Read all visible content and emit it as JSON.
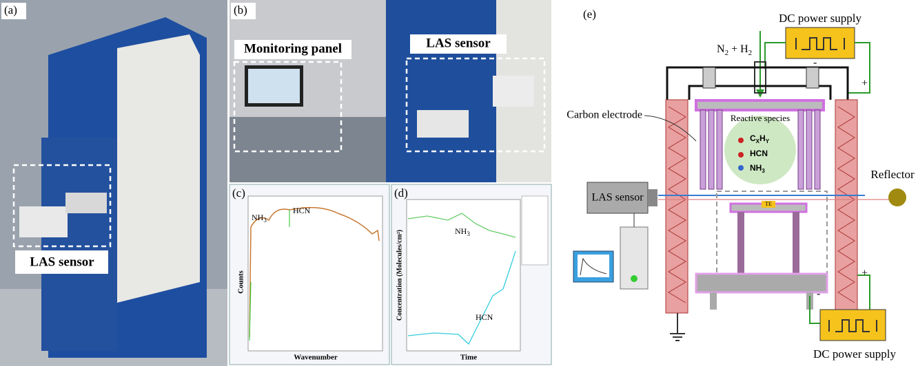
{
  "panels": {
    "a": {
      "label": "(a)",
      "callout": "LAS sensor"
    },
    "b": {
      "label": "(b)",
      "callouts": [
        "Monitoring panel",
        "LAS sensor"
      ]
    },
    "c": {
      "label": "(c)",
      "annotations": [
        {
          "base": "NH",
          "sub": "3"
        },
        "HCN"
      ],
      "y_axis": "Counts",
      "x_axis": "Wavenumber"
    },
    "d": {
      "label": "(d)",
      "annotations": [
        {
          "base": "NH",
          "sub": "3"
        },
        "HCN"
      ],
      "y_axis": "Concentration (Molecules/cm²)",
      "x_axis": "Time"
    },
    "e": {
      "label": "(e)",
      "top_supply": "DC power supply",
      "bottom_supply": "DC power supply",
      "gas": {
        "parts": [
          "N",
          "2",
          " + H",
          "2"
        ]
      },
      "carbon_electrode": "Carbon electrode",
      "reactive_species": "Reactive species",
      "species": [
        {
          "parts": [
            "C",
            "X",
            "H",
            "Y"
          ]
        },
        "HCN",
        {
          "parts": [
            "NH",
            "3"
          ]
        }
      ],
      "las_sensor": "LAS sensor",
      "reflector": "Reflector",
      "stage": "TE",
      "signs": [
        "-",
        "+",
        "+",
        "-"
      ]
    }
  }
}
